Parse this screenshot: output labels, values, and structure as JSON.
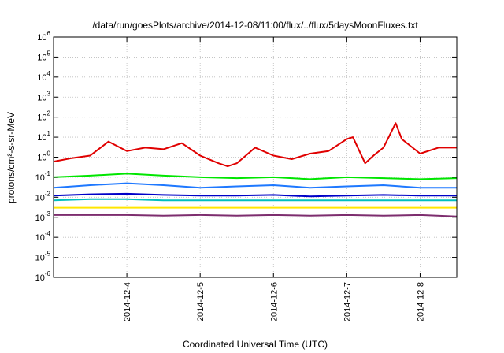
{
  "chart_data": {
    "type": "line",
    "title": "/data/run/goesPlots/archive/2014-12-08/11:00/flux/../flux/5daysMoonFluxes.txt",
    "xlabel": "Coordinated Universal Time (UTC)",
    "ylabel": "protons/cm²-s-sr-MeV",
    "yscale": "log",
    "ylim": [
      1e-06,
      1000000.0
    ],
    "xlim": [
      "2014-12-03T00:00",
      "2014-12-08T12:00"
    ],
    "x_ticks": [
      "2014-12-4",
      "2014-12-5",
      "2014-12-6",
      "2014-12-7",
      "2014-12-8"
    ],
    "y_ticks": [
      {
        "base": "10",
        "exp": "-6"
      },
      {
        "base": "10",
        "exp": "-5"
      },
      {
        "base": "10",
        "exp": "-4"
      },
      {
        "base": "10",
        "exp": "-3"
      },
      {
        "base": "10",
        "exp": "-2"
      },
      {
        "base": "10",
        "exp": "-1"
      },
      {
        "base": "10",
        "exp": "0"
      },
      {
        "base": "10",
        "exp": "1"
      },
      {
        "base": "10",
        "exp": "2"
      },
      {
        "base": "10",
        "exp": "3"
      },
      {
        "base": "10",
        "exp": "4"
      },
      {
        "base": "10",
        "exp": "5"
      },
      {
        "base": "10",
        "exp": "6"
      }
    ],
    "grid": true,
    "series": [
      {
        "color": "#e00000",
        "x": [
          "2014-12-03T00:00",
          "2014-12-03T06:00",
          "2014-12-03T12:00",
          "2014-12-03T18:00",
          "2014-12-04T00:00",
          "2014-12-04T06:00",
          "2014-12-04T12:00",
          "2014-12-04T18:00",
          "2014-12-05T00:00",
          "2014-12-05T06:00",
          "2014-12-05T09:00",
          "2014-12-05T12:00",
          "2014-12-05T18:00",
          "2014-12-06T00:00",
          "2014-12-06T06:00",
          "2014-12-06T12:00",
          "2014-12-06T18:00",
          "2014-12-07T00:00",
          "2014-12-07T02:00",
          "2014-12-07T06:00",
          "2014-12-07T09:00",
          "2014-12-07T12:00",
          "2014-12-07T16:00",
          "2014-12-07T18:00",
          "2014-12-08T00:00",
          "2014-12-08T06:00",
          "2014-12-08T12:00"
        ],
        "values": [
          0.6,
          0.9,
          1.2,
          6,
          2,
          3,
          2.5,
          5,
          1.2,
          0.5,
          0.35,
          0.5,
          3,
          1.2,
          0.8,
          1.5,
          2,
          8,
          10,
          0.5,
          1.3,
          3,
          50,
          8,
          1.5,
          3,
          3
        ]
      },
      {
        "color": "#00e600",
        "x": [
          "2014-12-03T00:00",
          "2014-12-03T12:00",
          "2014-12-04T00:00",
          "2014-12-04T12:00",
          "2014-12-05T00:00",
          "2014-12-05T12:00",
          "2014-12-06T00:00",
          "2014-12-06T12:00",
          "2014-12-07T00:00",
          "2014-12-07T12:00",
          "2014-12-08T00:00",
          "2014-12-08T12:00"
        ],
        "values": [
          0.1,
          0.12,
          0.15,
          0.12,
          0.1,
          0.09,
          0.1,
          0.08,
          0.1,
          0.09,
          0.08,
          0.09
        ]
      },
      {
        "color": "#1e78ff",
        "x": [
          "2014-12-03T00:00",
          "2014-12-03T12:00",
          "2014-12-04T00:00",
          "2014-12-04T12:00",
          "2014-12-05T00:00",
          "2014-12-05T12:00",
          "2014-12-06T00:00",
          "2014-12-06T12:00",
          "2014-12-07T00:00",
          "2014-12-07T12:00",
          "2014-12-08T00:00",
          "2014-12-08T12:00"
        ],
        "values": [
          0.03,
          0.04,
          0.05,
          0.04,
          0.03,
          0.035,
          0.04,
          0.03,
          0.035,
          0.04,
          0.03,
          0.03
        ]
      },
      {
        "color": "#0000c8",
        "x": [
          "2014-12-03T00:00",
          "2014-12-03T12:00",
          "2014-12-04T00:00",
          "2014-12-04T12:00",
          "2014-12-05T00:00",
          "2014-12-05T12:00",
          "2014-12-06T00:00",
          "2014-12-06T12:00",
          "2014-12-07T00:00",
          "2014-12-07T12:00",
          "2014-12-08T00:00",
          "2014-12-08T12:00"
        ],
        "values": [
          0.012,
          0.014,
          0.015,
          0.013,
          0.012,
          0.012,
          0.013,
          0.011,
          0.012,
          0.013,
          0.012,
          0.012
        ]
      },
      {
        "color": "#00bfbf",
        "x": [
          "2014-12-03T00:00",
          "2014-12-03T12:00",
          "2014-12-04T00:00",
          "2014-12-04T12:00",
          "2014-12-05T00:00",
          "2014-12-05T12:00",
          "2014-12-06T00:00",
          "2014-12-06T12:00",
          "2014-12-07T00:00",
          "2014-12-07T12:00",
          "2014-12-08T00:00",
          "2014-12-08T12:00"
        ],
        "values": [
          0.007,
          0.008,
          0.008,
          0.007,
          0.007,
          0.007,
          0.007,
          0.007,
          0.007,
          0.007,
          0.007,
          0.007
        ]
      },
      {
        "color": "#ffe600",
        "x": [
          "2014-12-03T00:00",
          "2014-12-03T12:00",
          "2014-12-04T00:00",
          "2014-12-04T12:00",
          "2014-12-05T00:00",
          "2014-12-05T12:00",
          "2014-12-06T00:00",
          "2014-12-06T12:00",
          "2014-12-07T00:00",
          "2014-12-07T12:00",
          "2014-12-08T00:00",
          "2014-12-08T12:00"
        ],
        "values": [
          0.003,
          0.003,
          0.003,
          0.003,
          0.003,
          0.003,
          0.003,
          0.003,
          0.003,
          0.003,
          0.003,
          0.003
        ]
      },
      {
        "color": "#7d2d6e",
        "x": [
          "2014-12-03T00:00",
          "2014-12-03T12:00",
          "2014-12-04T00:00",
          "2014-12-04T12:00",
          "2014-12-05T00:00",
          "2014-12-05T12:00",
          "2014-12-06T00:00",
          "2014-12-06T12:00",
          "2014-12-07T00:00",
          "2014-12-07T12:00",
          "2014-12-08T00:00",
          "2014-12-08T12:00"
        ],
        "values": [
          0.0013,
          0.0013,
          0.0013,
          0.0012,
          0.0013,
          0.0012,
          0.0013,
          0.0012,
          0.0013,
          0.0012,
          0.0013,
          0.0011
        ]
      }
    ]
  }
}
